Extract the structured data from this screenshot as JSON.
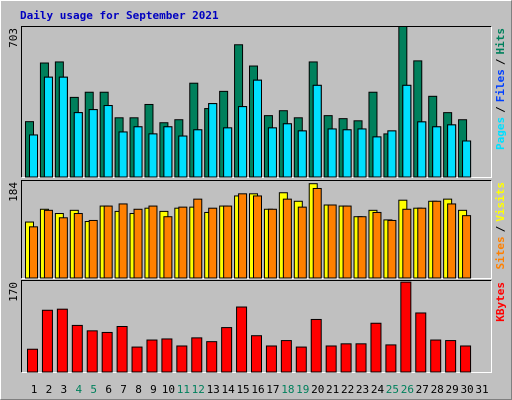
{
  "chart_data": [
    {
      "type": "bar",
      "title": "Daily usage for September 2021",
      "legend_separator": "/",
      "ylim": [
        0,
        703
      ],
      "yticks": [
        703
      ],
      "series": [
        {
          "name": "Pages",
          "color": "#00e0ff",
          "values": [
            198,
            467,
            467,
            302,
            316,
            335,
            212,
            236,
            203,
            236,
            193,
            222,
            344,
            231,
            330,
            453,
            231,
            250,
            217,
            429,
            226,
            222,
            226,
            189,
            217,
            429,
            259,
            236,
            245,
            170,
            null
          ]
        },
        {
          "name": "Files",
          "color": "#0040ff",
          "values": [
            198,
            467,
            467,
            302,
            316,
            335,
            212,
            236,
            203,
            236,
            193,
            222,
            344,
            231,
            330,
            453,
            231,
            250,
            217,
            429,
            226,
            222,
            226,
            189,
            217,
            429,
            259,
            236,
            245,
            170,
            null
          ]
        },
        {
          "name": "Hits",
          "color": "#00805c",
          "values": [
            260,
            533,
            538,
            373,
            397,
            397,
            278,
            278,
            340,
            255,
            269,
            439,
            321,
            401,
            618,
            519,
            288,
            311,
            278,
            538,
            288,
            274,
            264,
            397,
            203,
            703,
            543,
            378,
            302,
            269,
            null
          ]
        }
      ]
    },
    {
      "type": "bar",
      "legend_separator": "/",
      "ylim": [
        0,
        184
      ],
      "yticks": [
        184
      ],
      "series": [
        {
          "name": "Sites",
          "color": "#ff8000",
          "values": [
            97,
            128,
            114,
            122,
            109,
            136,
            140,
            130,
            136,
            116,
            134,
            149,
            132,
            136,
            159,
            155,
            130,
            149,
            134,
            169,
            138,
            136,
            116,
            124,
            109,
            130,
            132,
            145,
            140,
            118,
            null
          ]
        },
        {
          "name": "Visits",
          "color": "#ffff00",
          "values": [
            106,
            130,
            122,
            128,
            107,
            136,
            126,
            122,
            132,
            126,
            132,
            134,
            124,
            136,
            155,
            159,
            130,
            161,
            145,
            178,
            138,
            136,
            116,
            128,
            110,
            147,
            132,
            145,
            149,
            128,
            null
          ]
        }
      ]
    },
    {
      "type": "bar",
      "ylim": [
        0,
        170
      ],
      "yticks": [
        170
      ],
      "categories": [
        "1",
        "2",
        "3",
        "4",
        "5",
        "6",
        "7",
        "8",
        "9",
        "10",
        "11",
        "12",
        "13",
        "14",
        "15",
        "16",
        "17",
        "18",
        "19",
        "20",
        "21",
        "22",
        "23",
        "24",
        "25",
        "26",
        "27",
        "28",
        "29",
        "30",
        "31"
      ],
      "category_colors": [
        "#000000",
        "#000000",
        "#000000",
        "#00805c",
        "#00805c",
        "#000000",
        "#000000",
        "#000000",
        "#000000",
        "#000000",
        "#00805c",
        "#00805c",
        "#000000",
        "#000000",
        "#000000",
        "#000000",
        "#000000",
        "#00805c",
        "#00805c",
        "#000000",
        "#000000",
        "#000000",
        "#000000",
        "#000000",
        "#00805c",
        "#00805c",
        "#000000",
        "#000000",
        "#000000",
        "#000000",
        "#000000"
      ],
      "series": [
        {
          "name": "KBytes",
          "color": "#ff0000",
          "values": [
            43,
            115,
            117,
            87,
            77,
            74,
            85,
            47,
            60,
            62,
            49,
            64,
            57,
            83,
            121,
            68,
            49,
            59,
            47,
            98,
            49,
            53,
            53,
            91,
            51,
            167,
            110,
            60,
            59,
            49,
            null
          ]
        }
      ]
    }
  ]
}
